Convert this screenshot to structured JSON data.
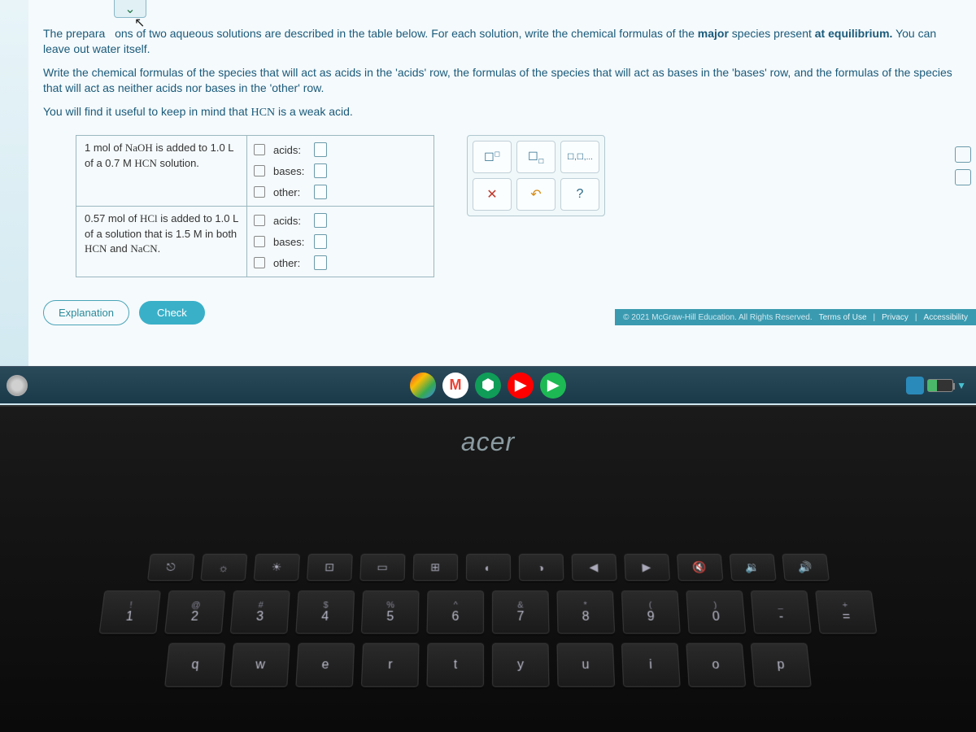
{
  "instructions": {
    "p1_a": "The prepara",
    "p1_b": "ons of two aqueous solutions are described in the table below. For each solution, write the chemical formulas of the ",
    "p1_bold1": "major",
    "p1_c": " species present ",
    "p1_bold2": "at equilibrium.",
    "p1_d": " You can leave out water itself.",
    "p2": "Write the chemical formulas of the species that will act as acids in the 'acids' row, the formulas of the species that will act as bases in the 'bases' row, and the formulas of the species that will act as neither acids nor bases in the 'other' row.",
    "p3_a": "You will find it useful to keep in mind that ",
    "p3_chem": "HCN",
    "p3_b": " is a weak acid."
  },
  "table": {
    "row1": {
      "desc_a": "1 mol of ",
      "desc_chem1": "NaOH",
      "desc_b": " is added to 1.0 L of a 0.7 M ",
      "desc_chem2": "HCN",
      "desc_c": " solution."
    },
    "row2": {
      "desc_a": "0.57 mol of ",
      "desc_chem1": "HCl",
      "desc_b": " is added to 1.0 L of a solution that is 1.5 M in both ",
      "desc_chem2": "HCN",
      "desc_c": " and ",
      "desc_chem3": "NaCN",
      "desc_d": "."
    },
    "labels": {
      "acids": "acids:",
      "bases": "bases:",
      "other": "other:"
    }
  },
  "tools": {
    "superscript": "☐▫",
    "subscript": "☐▫",
    "list": "☐,☐,...",
    "clear": "✕",
    "reset": "↶",
    "help": "?"
  },
  "buttons": {
    "explanation": "Explanation",
    "check": "Check"
  },
  "footer": {
    "copyright": "© 2021 McGraw-Hill Education. All Rights Reserved.",
    "terms": "Terms of Use",
    "privacy": "Privacy",
    "accessibility": "Accessibility"
  },
  "brand": "acer",
  "keyboard": {
    "fn_row": [
      {
        "icon": "⎋",
        "label": ""
      },
      {
        "icon": "☼",
        "label": ""
      },
      {
        "icon": "☀",
        "label": ""
      },
      {
        "icon": "⊡",
        "label": ""
      },
      {
        "icon": "▭",
        "label": ""
      },
      {
        "icon": "⊞",
        "label": ""
      },
      {
        "icon": "◐",
        "label": ""
      },
      {
        "icon": "◑",
        "label": ""
      },
      {
        "icon": "◀",
        "label": ""
      },
      {
        "icon": "▶",
        "label": ""
      },
      {
        "icon": "🔇",
        "label": ""
      },
      {
        "icon": "🔉",
        "label": ""
      },
      {
        "icon": "🔊",
        "label": ""
      }
    ],
    "num_row": [
      {
        "upper": "!",
        "lower": "1"
      },
      {
        "upper": "@",
        "lower": "2"
      },
      {
        "upper": "#",
        "lower": "3"
      },
      {
        "upper": "$",
        "lower": "4"
      },
      {
        "upper": "%",
        "lower": "5"
      },
      {
        "upper": "^",
        "lower": "6"
      },
      {
        "upper": "&",
        "lower": "7"
      },
      {
        "upper": "*",
        "lower": "8"
      },
      {
        "upper": "(",
        "lower": "9"
      },
      {
        "upper": ")",
        "lower": "0"
      },
      {
        "upper": "_",
        "lower": "-"
      },
      {
        "upper": "+",
        "lower": "="
      }
    ],
    "letter_row": [
      {
        "lower": "q"
      },
      {
        "lower": "w"
      },
      {
        "lower": "e"
      },
      {
        "lower": "r"
      },
      {
        "lower": "t"
      },
      {
        "lower": "y"
      },
      {
        "lower": "u"
      },
      {
        "lower": "i"
      },
      {
        "lower": "o"
      },
      {
        "lower": "p"
      }
    ]
  }
}
